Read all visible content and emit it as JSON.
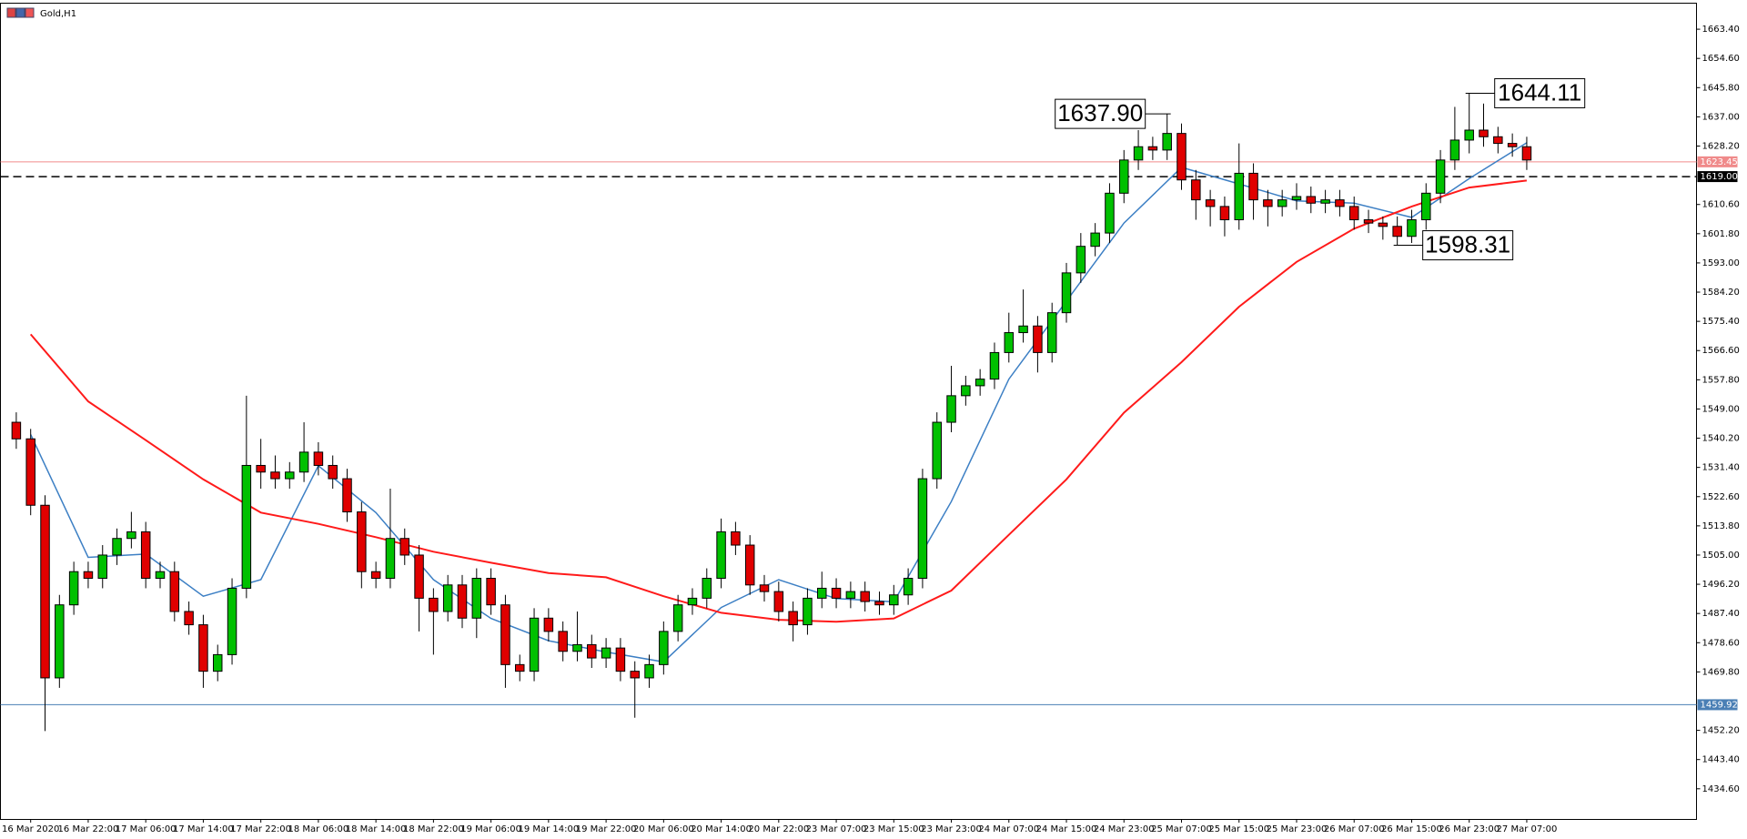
{
  "chart_data": {
    "type": "candlestick",
    "title": "Gold,H1",
    "open": [
      1545,
      1540,
      1520,
      1468,
      1490,
      1500,
      1498,
      1505,
      1510,
      1512,
      1498,
      1500,
      1488,
      1484,
      1470,
      1475,
      1495,
      1532,
      1530,
      1528,
      1530,
      1536,
      1532,
      1528,
      1518,
      1500,
      1498,
      1510,
      1505,
      1492,
      1488,
      1496,
      1486,
      1498,
      1490,
      1472,
      1470,
      1486,
      1482,
      1476,
      1478,
      1474,
      1477,
      1470,
      1468,
      1472,
      1482,
      1490,
      1492,
      1498,
      1512,
      1508,
      1496,
      1494,
      1488,
      1484,
      1492,
      1495,
      1492,
      1494,
      1491,
      1490,
      1493,
      1498,
      1528,
      1545,
      1553,
      1556,
      1558,
      1566,
      1572,
      1574,
      1566,
      1578,
      1590,
      1598,
      1602,
      1614,
      1624,
      1628,
      1627,
      1632,
      1618,
      1612,
      1610,
      1606,
      1620,
      1612,
      1610,
      1612,
      1613,
      1611,
      1612,
      1610,
      1606,
      1605,
      1604,
      1601,
      1606,
      1614,
      1624,
      1630,
      1633,
      1631,
      1629,
      1628
    ],
    "high": [
      1548,
      1543,
      1523,
      1493,
      1503,
      1503,
      1508,
      1513,
      1518,
      1515,
      1503,
      1503,
      1491,
      1487,
      1478,
      1498,
      1553,
      1540,
      1535,
      1533,
      1545,
      1539,
      1535,
      1531,
      1521,
      1503,
      1525,
      1513,
      1508,
      1495,
      1499,
      1499,
      1501,
      1501,
      1493,
      1475,
      1489,
      1489,
      1485,
      1488,
      1481,
      1480,
      1480,
      1473,
      1475,
      1485,
      1493,
      1495,
      1501,
      1516,
      1515,
      1511,
      1499,
      1497,
      1491,
      1495,
      1500,
      1498,
      1497,
      1497,
      1494,
      1496,
      1501,
      1531,
      1548,
      1562,
      1559,
      1561,
      1569,
      1578,
      1585,
      1577,
      1581,
      1593,
      1602,
      1605,
      1617,
      1627,
      1633,
      1631,
      1637.9,
      1635,
      1621,
      1615,
      1613,
      1629,
      1623,
      1615,
      1615,
      1617,
      1616,
      1615,
      1615,
      1613,
      1609,
      1607,
      1607,
      1609,
      1617,
      1627,
      1640,
      1644.11,
      1641,
      1634,
      1632,
      1631
    ],
    "low": [
      1537,
      1517,
      1452,
      1465,
      1487,
      1495,
      1495,
      1502,
      1507,
      1495,
      1495,
      1485,
      1481,
      1465,
      1467,
      1472,
      1492,
      1525,
      1525,
      1525,
      1527,
      1529,
      1525,
      1515,
      1495,
      1495,
      1495,
      1502,
      1482,
      1475,
      1485,
      1483,
      1480,
      1487,
      1465,
      1467,
      1467,
      1479,
      1473,
      1473,
      1471,
      1471,
      1467,
      1456,
      1465,
      1469,
      1479,
      1487,
      1489,
      1495,
      1505,
      1493,
      1491,
      1485,
      1479,
      1481,
      1489,
      1489,
      1489,
      1488,
      1487,
      1487,
      1490,
      1495,
      1525,
      1542,
      1550,
      1553,
      1555,
      1563,
      1569,
      1560,
      1563,
      1575,
      1587,
      1595,
      1599,
      1611,
      1621,
      1624,
      1624,
      1615,
      1606,
      1604,
      1601,
      1603,
      1606,
      1604,
      1607,
      1609,
      1608,
      1608,
      1607,
      1603,
      1602,
      1600,
      1598.31,
      1599,
      1603,
      1611,
      1621,
      1626,
      1628,
      1626,
      1625,
      1621
    ],
    "close": [
      1540,
      1520,
      1468,
      1490,
      1500,
      1498,
      1505,
      1510,
      1512,
      1498,
      1500,
      1488,
      1484,
      1470,
      1475,
      1495,
      1532,
      1530,
      1528,
      1530,
      1536,
      1532,
      1528,
      1518,
      1500,
      1498,
      1510,
      1505,
      1492,
      1488,
      1496,
      1486,
      1498,
      1490,
      1472,
      1470,
      1486,
      1482,
      1476,
      1478,
      1474,
      1477,
      1470,
      1468,
      1472,
      1482,
      1490,
      1492,
      1498,
      1512,
      1508,
      1496,
      1494,
      1488,
      1484,
      1492,
      1495,
      1492,
      1494,
      1491,
      1490,
      1493,
      1498,
      1528,
      1545,
      1553,
      1556,
      1558,
      1566,
      1572,
      1574,
      1566,
      1578,
      1590,
      1598,
      1602,
      1614,
      1624,
      1628,
      1627,
      1632,
      1618,
      1612,
      1610,
      1606,
      1620,
      1612,
      1610,
      1612,
      1613,
      1611,
      1612,
      1610,
      1606,
      1605,
      1604,
      1601,
      1606,
      1614,
      1624,
      1630,
      1633,
      1631,
      1629,
      1628,
      1624
    ],
    "up_color": "#00c000",
    "down_color": "#e00000",
    "moving_averages": [
      {
        "color": "#3c7fc4",
        "x": [
          1,
          5,
          9,
          13,
          17,
          21,
          25,
          29,
          33,
          37,
          41,
          45,
          49,
          53,
          57,
          61,
          65,
          69,
          73,
          77,
          81,
          85,
          89,
          93,
          97,
          101,
          105
        ],
        "values": [
          1541.3,
          1504.3,
          1505.3,
          1492.6,
          1497.6,
          1531.9,
          1517.8,
          1497.6,
          1485.9,
          1479.2,
          1475.8,
          1472.8,
          1489.2,
          1497.6,
          1491.9,
          1490.9,
          1521.1,
          1558.0,
          1581.5,
          1605.0,
          1621.8,
          1616.8,
          1611.7,
          1611.0,
          1606.7,
          1618.4,
          1629.2
        ]
      },
      {
        "color": "#ff1a1a",
        "x": [
          1,
          5,
          9,
          13,
          17,
          21,
          25,
          29,
          33,
          37,
          41,
          45,
          49,
          53,
          57,
          61,
          65,
          69,
          73,
          77,
          81,
          85,
          89,
          93,
          97,
          101,
          105
        ],
        "values": [
          1571.5,
          1551.3,
          1539.6,
          1527.8,
          1517.8,
          1514.4,
          1510.4,
          1506.0,
          1502.7,
          1499.6,
          1498.3,
          1492.6,
          1487.6,
          1485.5,
          1484.9,
          1485.9,
          1494.3,
          1511.1,
          1527.8,
          1547.9,
          1563.1,
          1579.8,
          1593.3,
          1603.3,
          1610.0,
          1615.7,
          1617.8
        ]
      }
    ],
    "levels": [
      {
        "value": 1623.45,
        "label": "1623.45",
        "color": "#f08a8a",
        "style": "solid"
      },
      {
        "value": 1619,
        "label": "1619.00",
        "color": "#000000",
        "style": "dashed"
      },
      {
        "value": 1459.92,
        "label": "1459.92",
        "color": "#4a7fb5",
        "style": "solid"
      }
    ],
    "annotations": [
      {
        "value": 1637.9,
        "label": "1637.90",
        "index": 80,
        "side": "left"
      },
      {
        "value": 1644.11,
        "label": "1644.11",
        "index": 101,
        "side": "right"
      },
      {
        "value": 1598.31,
        "label": "1598.31",
        "index": 96,
        "side": "right"
      }
    ],
    "xlim": [
      -1.1,
      116.8
    ],
    "xticks": [
      {
        "value": 1,
        "label": "16 Mar 2020"
      },
      {
        "value": 5,
        "label": "16 Mar 22:00"
      },
      {
        "value": 9,
        "label": "17 Mar 06:00"
      },
      {
        "value": 13,
        "label": "17 Mar 14:00"
      },
      {
        "value": 17,
        "label": "17 Mar 22:00"
      },
      {
        "value": 21,
        "label": "18 Mar 06:00"
      },
      {
        "value": 25,
        "label": "18 Mar 14:00"
      },
      {
        "value": 29,
        "label": "18 Mar 22:00"
      },
      {
        "value": 33,
        "label": "19 Mar 06:00"
      },
      {
        "value": 37,
        "label": "19 Mar 14:00"
      },
      {
        "value": 41,
        "label": "19 Mar 22:00"
      },
      {
        "value": 45,
        "label": "20 Mar 06:00"
      },
      {
        "value": 49,
        "label": "20 Mar 14:00"
      },
      {
        "value": 53,
        "label": "20 Mar 22:00"
      },
      {
        "value": 57,
        "label": "23 Mar 07:00"
      },
      {
        "value": 61,
        "label": "23 Mar 15:00"
      },
      {
        "value": 65,
        "label": "23 Mar 23:00"
      },
      {
        "value": 69,
        "label": "24 Mar 07:00"
      },
      {
        "value": 73,
        "label": "24 Mar 15:00"
      },
      {
        "value": 77,
        "label": "24 Mar 23:00"
      },
      {
        "value": 81,
        "label": "25 Mar 07:00"
      },
      {
        "value": 85,
        "label": "25 Mar 15:00"
      },
      {
        "value": 89,
        "label": "25 Mar 23:00"
      },
      {
        "value": 93,
        "label": "26 Mar 07:00"
      },
      {
        "value": 97,
        "label": "26 Mar 15:00"
      },
      {
        "value": 101,
        "label": "26 Mar 23:00"
      },
      {
        "value": 105,
        "label": "27 Mar 07:00"
      }
    ],
    "ylim": [
      1425.5,
      1671.1
    ],
    "yticks": [
      {
        "value": 1663.4,
        "label": "1663.40"
      },
      {
        "value": 1654.6,
        "label": "1654.60"
      },
      {
        "value": 1645.8,
        "label": "1645.80"
      },
      {
        "value": 1637,
        "label": "1637.00"
      },
      {
        "value": 1628.2,
        "label": "1628.20"
      },
      {
        "value": 1610.6,
        "label": "1610.60"
      },
      {
        "value": 1601.8,
        "label": "1601.80"
      },
      {
        "value": 1593,
        "label": "1593.00"
      },
      {
        "value": 1584.2,
        "label": "1584.20"
      },
      {
        "value": 1575.4,
        "label": "1575.40"
      },
      {
        "value": 1566.6,
        "label": "1566.60"
      },
      {
        "value": 1557.8,
        "label": "1557.80"
      },
      {
        "value": 1549,
        "label": "1549.00"
      },
      {
        "value": 1540.2,
        "label": "1540.20"
      },
      {
        "value": 1531.4,
        "label": "1531.40"
      },
      {
        "value": 1522.6,
        "label": "1522.60"
      },
      {
        "value": 1513.8,
        "label": "1513.80"
      },
      {
        "value": 1505,
        "label": "1505.00"
      },
      {
        "value": 1496.2,
        "label": "1496.20"
      },
      {
        "value": 1487.4,
        "label": "1487.40"
      },
      {
        "value": 1478.6,
        "label": "1478.60"
      },
      {
        "value": 1469.8,
        "label": "1469.80"
      },
      {
        "value": 1452.2,
        "label": "1452.20"
      },
      {
        "value": 1443.4,
        "label": "1443.40"
      },
      {
        "value": 1434.6,
        "label": "1434.60"
      }
    ]
  }
}
